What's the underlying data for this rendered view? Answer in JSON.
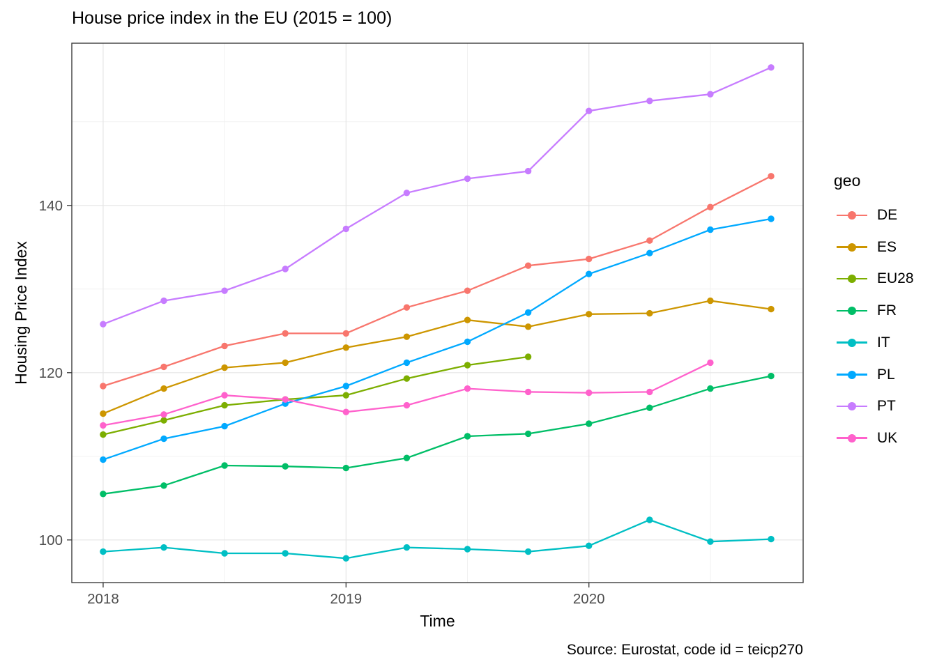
{
  "title": "House price index in the EU (2015 = 100)",
  "source_note": "Source: Eurostat, code id = teicp270",
  "chart_data": {
    "type": "line",
    "title": "House price index in the EU (2015 = 100)",
    "xlabel": "Time",
    "ylabel": "Housing Price Index",
    "legend_title": "geo",
    "legend_position": "right",
    "grid": true,
    "marker": "circle",
    "x": [
      2018.0,
      2018.25,
      2018.5,
      2018.75,
      2019.0,
      2019.25,
      2019.5,
      2019.75,
      2020.0,
      2020.25,
      2020.5,
      2020.75
    ],
    "x_ticks": {
      "major": [
        2018,
        2019,
        2020
      ],
      "minor": [
        2018.5,
        2019.5,
        2020.5
      ],
      "labels": [
        "2018",
        "2019",
        "2020"
      ]
    },
    "y_ticks": {
      "major": [
        100,
        120,
        140
      ],
      "minor": [
        110,
        130,
        150
      ],
      "labels": [
        "100",
        "120",
        "140"
      ]
    },
    "xlim": [
      2017.871,
      2020.882
    ],
    "ylim": [
      94.9,
      159.4
    ],
    "series": [
      {
        "name": "DE",
        "color": "#F8766D",
        "values": [
          118.4,
          120.7,
          123.2,
          124.7,
          124.7,
          127.8,
          129.8,
          132.8,
          133.6,
          135.8,
          139.8,
          143.5
        ]
      },
      {
        "name": "ES",
        "color": "#CD9600",
        "values": [
          115.1,
          118.1,
          120.6,
          121.2,
          123.0,
          124.3,
          126.3,
          125.5,
          127.0,
          127.1,
          128.6,
          127.6
        ]
      },
      {
        "name": "EU28",
        "color": "#7CAE00",
        "values": [
          112.6,
          114.3,
          116.1,
          116.8,
          117.3,
          119.3,
          120.9,
          121.9
        ]
      },
      {
        "name": "FR",
        "color": "#00BE67",
        "values": [
          105.5,
          106.5,
          108.9,
          108.8,
          108.6,
          109.8,
          112.4,
          112.7,
          113.9,
          115.8,
          118.1,
          119.6
        ]
      },
      {
        "name": "IT",
        "color": "#00BFC4",
        "values": [
          98.6,
          99.1,
          98.4,
          98.4,
          97.8,
          99.1,
          98.9,
          98.6,
          99.3,
          102.4,
          99.8,
          100.1
        ]
      },
      {
        "name": "PL",
        "color": "#00A9FF",
        "values": [
          109.6,
          112.1,
          113.6,
          116.3,
          118.4,
          121.2,
          123.7,
          127.2,
          131.8,
          134.3,
          137.1,
          138.4
        ]
      },
      {
        "name": "PT",
        "color": "#C77CFF",
        "values": [
          125.8,
          128.6,
          129.8,
          132.4,
          137.2,
          141.5,
          143.2,
          144.1,
          151.3,
          152.5,
          153.3,
          156.5
        ]
      },
      {
        "name": "UK",
        "color": "#FF61CC",
        "values": [
          113.7,
          115.0,
          117.3,
          116.8,
          115.3,
          116.1,
          118.1,
          117.7,
          117.6,
          117.7,
          121.2
        ]
      }
    ]
  }
}
